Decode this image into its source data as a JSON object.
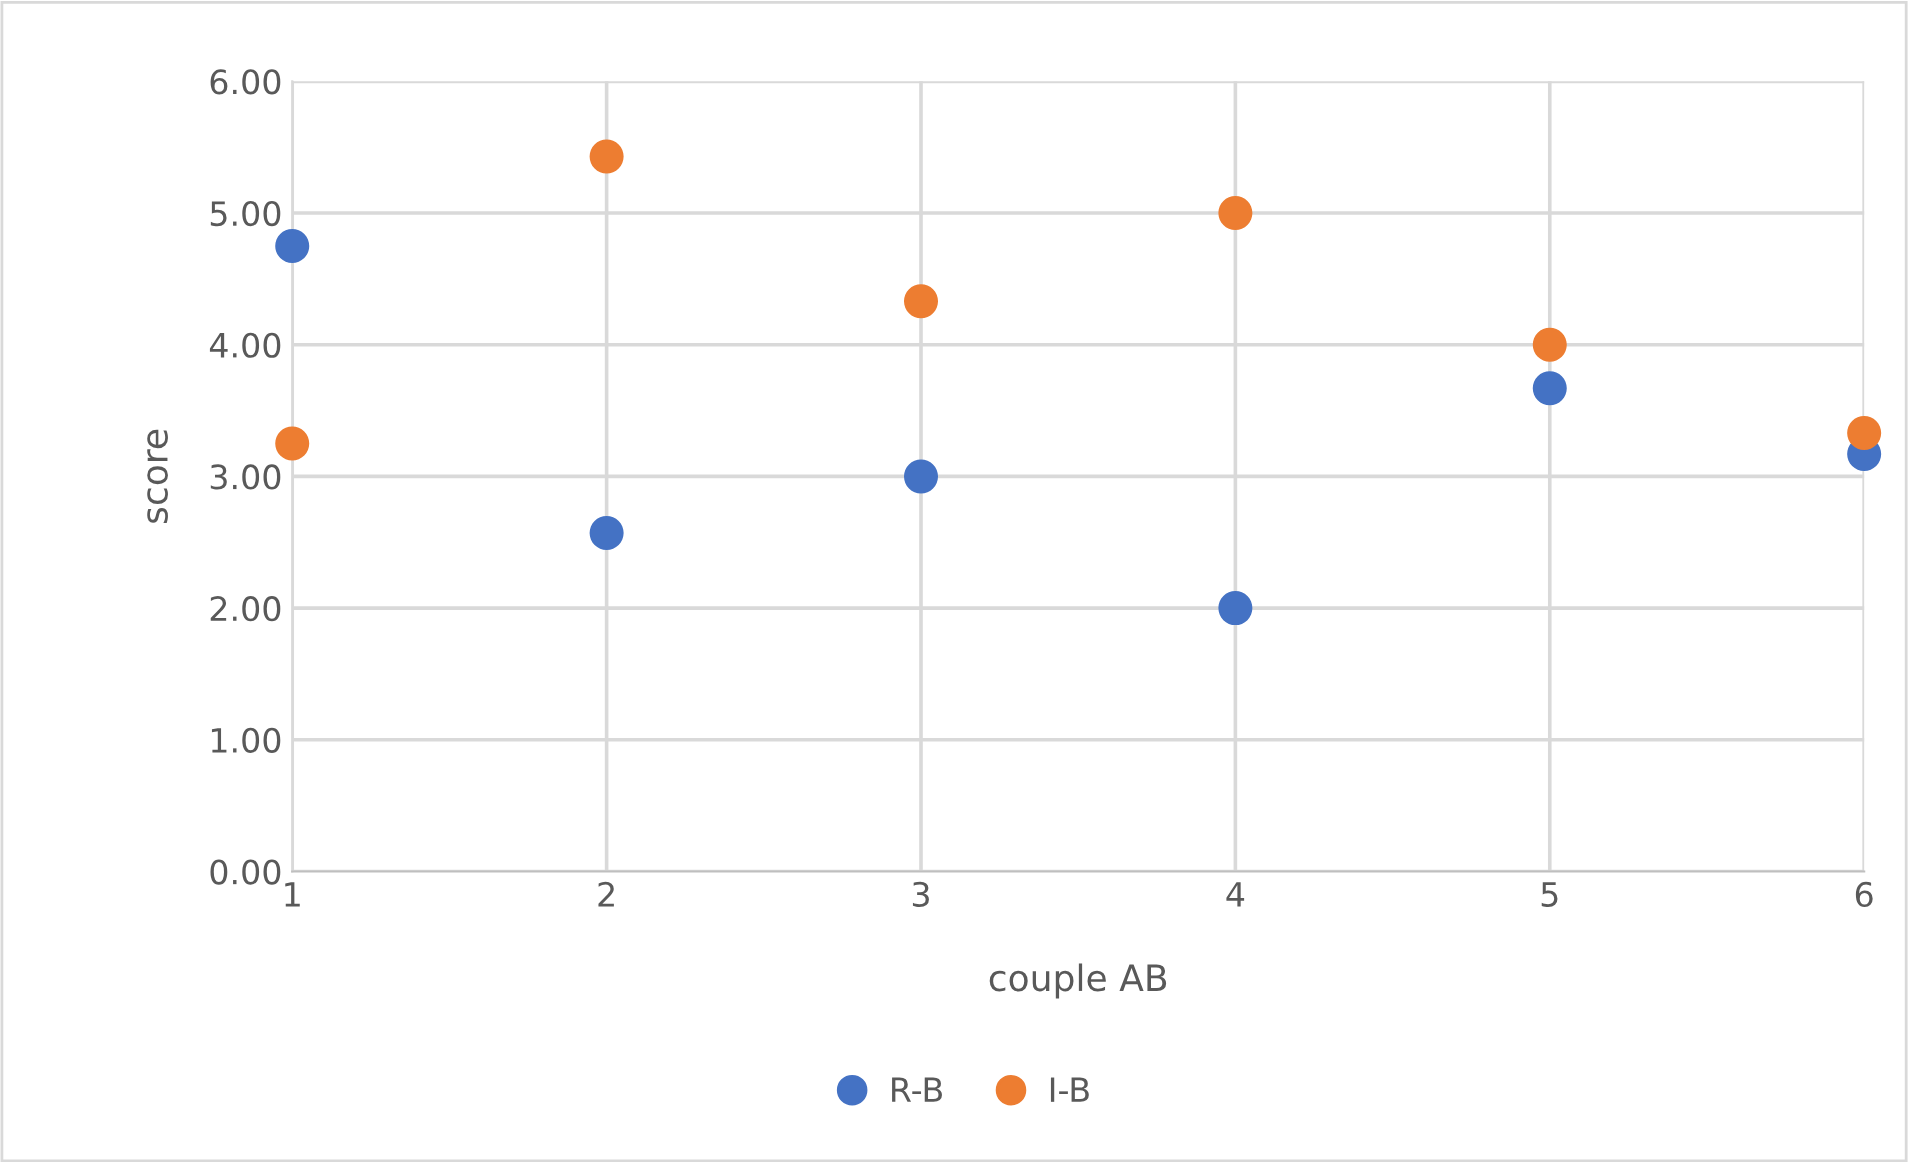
{
  "chart_data": {
    "type": "scatter",
    "xlabel": "couple AB",
    "ylabel": "score",
    "x": [
      1,
      2,
      3,
      4,
      5,
      6
    ],
    "series": [
      {
        "name": "R-B",
        "color": "#4472c4",
        "values": [
          4.75,
          2.57,
          3.0,
          2.0,
          3.67,
          3.17
        ]
      },
      {
        "name": "I-B",
        "color": "#ed7d31",
        "values": [
          3.25,
          5.43,
          4.33,
          5.0,
          4.0,
          3.33
        ]
      }
    ],
    "xlim": [
      1,
      6
    ],
    "xticks": [
      1,
      2,
      3,
      4,
      5,
      6
    ],
    "ylim": [
      0,
      6
    ],
    "yticks": [
      {
        "value": 0,
        "label": "0.00"
      },
      {
        "value": 1,
        "label": "1.00"
      },
      {
        "value": 2,
        "label": "2.00"
      },
      {
        "value": 3,
        "label": "3.00"
      },
      {
        "value": 4,
        "label": "4.00"
      },
      {
        "value": 5,
        "label": "5.00"
      },
      {
        "value": 6,
        "label": "6.00"
      }
    ],
    "grid": true,
    "legend": "bottom",
    "marker": "circle"
  }
}
